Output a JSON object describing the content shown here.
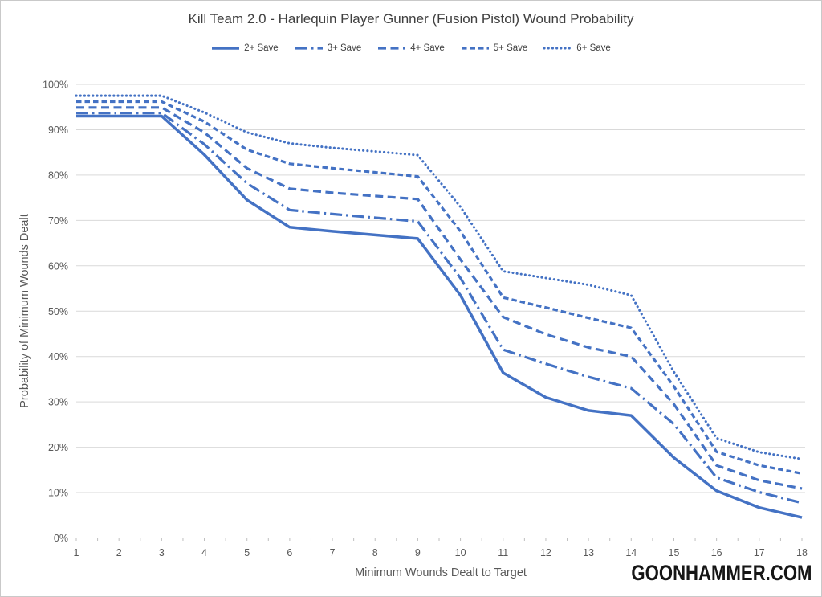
{
  "title": "Kill Team 2.0 - Harlequin Player Gunner (Fusion Pistol) Wound Probability",
  "watermark": "GOONHAMMER.COM",
  "colors": {
    "line_blue": "#4472C4",
    "grid": "#D9D9D9",
    "axis": "#BFBFBF",
    "tick_text": "#595959",
    "title_text": "#404040"
  },
  "chart_data": {
    "type": "line",
    "title": "Kill Team 2.0 - Harlequin Player Gunner (Fusion Pistol) Wound Probability",
    "xlabel": "Minimum Wounds Dealt to Target",
    "ylabel": "Probability of Minimum Wounds Dealt",
    "x": [
      1,
      2,
      3,
      4,
      5,
      6,
      7,
      8,
      9,
      10,
      11,
      12,
      13,
      14,
      15,
      16,
      17,
      18
    ],
    "y_ticks_percent": [
      0,
      10,
      20,
      30,
      40,
      50,
      60,
      70,
      80,
      90,
      100
    ],
    "ylim": [
      0,
      100
    ],
    "grid": "horizontal",
    "legend_position": "top",
    "series": [
      {
        "name": "2+ Save",
        "style": "solid",
        "values": [
          93,
          93,
          93,
          84.5,
          74.5,
          68.5,
          67.6,
          66.8,
          66,
          53.5,
          36.4,
          31,
          28.1,
          27,
          17.7,
          10.4,
          6.7,
          4.5
        ]
      },
      {
        "name": "3+ Save",
        "style": "long-dash-dot",
        "values": [
          93.7,
          93.7,
          93.7,
          86.8,
          78.2,
          72.3,
          71.4,
          70.6,
          69.8,
          57.3,
          41.5,
          38.4,
          35.5,
          33,
          25.1,
          13.3,
          10.1,
          7.7
        ]
      },
      {
        "name": "4+ Save",
        "style": "dash",
        "values": [
          94.9,
          94.9,
          94.9,
          89.4,
          81.5,
          77,
          76.1,
          75.4,
          74.7,
          61.4,
          48.7,
          44.9,
          42,
          40,
          29.5,
          16,
          12.7,
          10.9
        ]
      },
      {
        "name": "5+ Save",
        "style": "medium-dash",
        "values": [
          96.2,
          96.2,
          96.2,
          91.8,
          85.6,
          82.5,
          81.5,
          80.6,
          79.7,
          67.6,
          53,
          50.8,
          48.5,
          46.3,
          33.4,
          19,
          16,
          14.2
        ]
      },
      {
        "name": "6+ Save",
        "style": "dot",
        "values": [
          97.5,
          97.5,
          97.5,
          93.8,
          89.4,
          87,
          86,
          85.2,
          84.4,
          73,
          58.8,
          57.3,
          55.8,
          53.5,
          36.6,
          22,
          18.9,
          17.4
        ]
      }
    ]
  }
}
